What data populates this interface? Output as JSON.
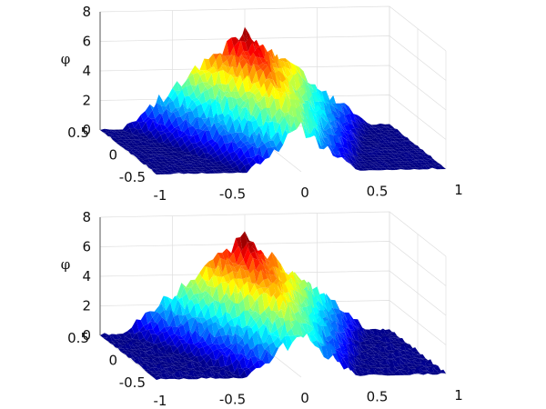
{
  "chart_data": [
    {
      "type": "surface",
      "panel": "top",
      "zlabel": "φ",
      "xlim": [
        -1,
        1
      ],
      "ylim": [
        -0.5,
        0.5
      ],
      "zlim": [
        0,
        8
      ],
      "xticks": [
        "-1",
        "-0.5",
        "0",
        "0.5",
        "1"
      ],
      "yticks": [
        "0.5",
        "0",
        "-0.5"
      ],
      "zticks": [
        "0",
        "2",
        "4",
        "6",
        "8"
      ],
      "grid": true,
      "colormap": "jet",
      "surface_model": "pyramid ridge with noise",
      "peak": {
        "x": 0.0,
        "y": 0.5,
        "z": 6.5
      },
      "base_level": 0,
      "noise_amplitude": 0.35,
      "edge_ripple": 0.0
    },
    {
      "type": "surface",
      "panel": "bottom",
      "zlabel": "φ",
      "xlim": [
        -1,
        1
      ],
      "ylim": [
        -0.5,
        0.5
      ],
      "zlim": [
        0,
        8
      ],
      "xticks": [
        "-1",
        "-0.5",
        "0",
        "0.5",
        "1"
      ],
      "yticks": [
        "0.5",
        "0",
        "-0.5"
      ],
      "zticks": [
        "0",
        "2",
        "4",
        "6",
        "8"
      ],
      "grid": true,
      "colormap": "jet",
      "surface_model": "pyramid ridge with noise",
      "peak": {
        "x": 0.0,
        "y": 0.5,
        "z": 6.5
      },
      "base_level": 0,
      "noise_amplitude": 0.35,
      "edge_ripple": 0.25
    }
  ]
}
